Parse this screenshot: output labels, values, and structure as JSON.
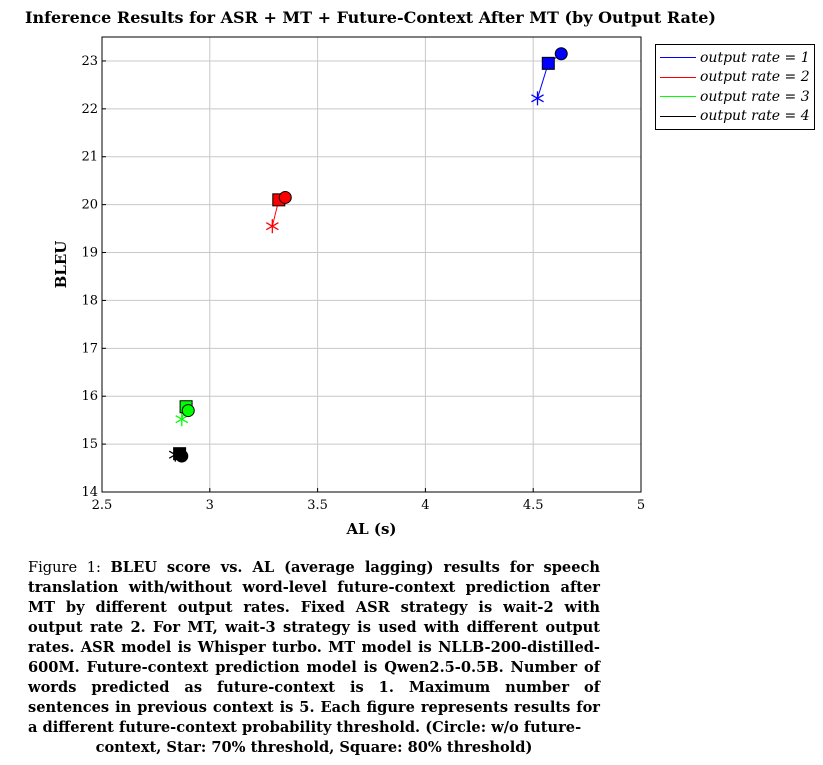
{
  "chart_data": {
    "type": "scatter",
    "title": "Inference Results for ASR + MT + Future-Context After MT (by Output Rate)",
    "xlabel": "AL (s)",
    "ylabel": "BLEU",
    "xlim": [
      2.5,
      5
    ],
    "ylim": [
      14,
      23.5
    ],
    "xticks": [
      "2.5",
      "3",
      "3.5",
      "4",
      "4.5",
      "5"
    ],
    "yticks": [
      "14",
      "15",
      "16",
      "17",
      "18",
      "19",
      "20",
      "21",
      "22",
      "23"
    ],
    "grid": true,
    "legend_position": "outside-right",
    "series": [
      {
        "name": "output rate = 1",
        "color": "#0000ff",
        "points": [
          {
            "marker": "circle",
            "x": 4.63,
            "y": 23.15
          },
          {
            "marker": "square",
            "x": 4.57,
            "y": 22.95
          },
          {
            "marker": "star",
            "x": 4.52,
            "y": 22.22
          }
        ]
      },
      {
        "name": "output rate = 2",
        "color": "#ff0000",
        "points": [
          {
            "marker": "circle",
            "x": 3.35,
            "y": 20.15
          },
          {
            "marker": "square",
            "x": 3.32,
            "y": 20.1
          },
          {
            "marker": "star",
            "x": 3.29,
            "y": 19.55
          }
        ]
      },
      {
        "name": "output rate = 3",
        "color": "#00ff00",
        "points": [
          {
            "marker": "circle",
            "x": 2.9,
            "y": 15.7
          },
          {
            "marker": "square",
            "x": 2.89,
            "y": 15.78
          },
          {
            "marker": "star",
            "x": 2.87,
            "y": 15.52
          }
        ]
      },
      {
        "name": "output rate = 4",
        "color": "#000000",
        "points": [
          {
            "marker": "circle",
            "x": 2.87,
            "y": 14.75
          },
          {
            "marker": "square",
            "x": 2.86,
            "y": 14.8
          },
          {
            "marker": "star",
            "x": 2.84,
            "y": 14.78
          }
        ]
      }
    ]
  },
  "caption": {
    "label": "Figure 1:",
    "body": "BLEU score vs. AL (average lagging) results for speech translation with/without word-level future-context prediction after MT by different output rates. Fixed ASR strategy is wait-2 with output rate 2. For MT, wait-3 strategy is used with different output rates. ASR model is Whisper turbo. MT model is NLLB-200-distilled-600M. Future-context prediction model is Qwen2.5-0.5B. Number of words predicted as future-context is 1. Maximum number of sentences in previous context is 5. Each figure represents results for a different future-context probability threshold. (Circle: w/o future-",
    "last_line": "context, Star: 70% threshold, Square: 80% threshold)"
  }
}
